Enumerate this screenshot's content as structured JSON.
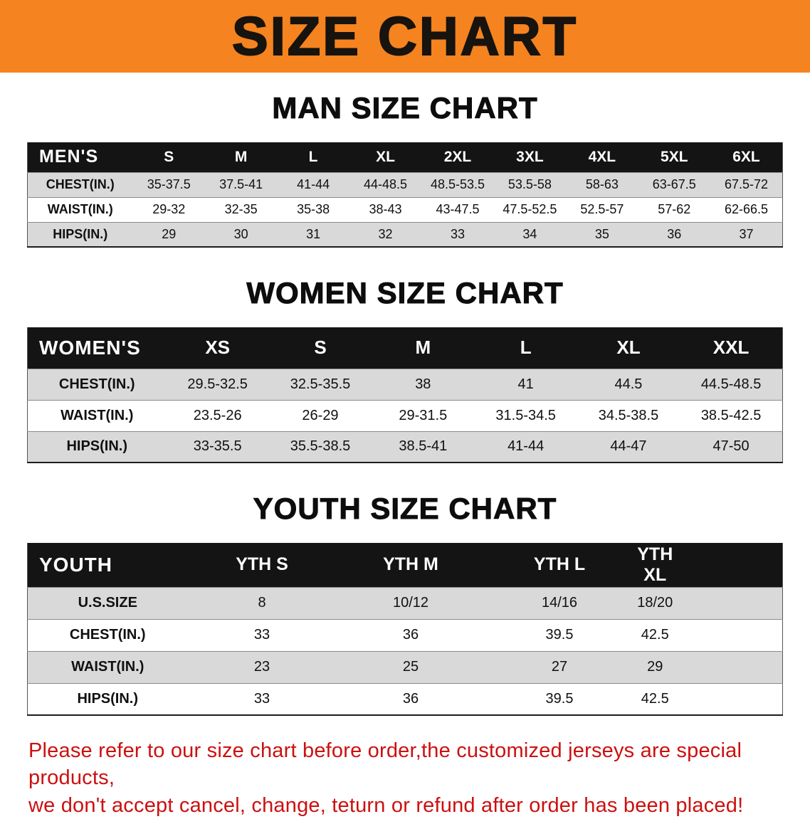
{
  "colors": {
    "banner_orange": "#f5831f",
    "header_black": "#141414",
    "stripe_gray": "#d9d9d9",
    "warning_red": "#cc1010"
  },
  "banner": {
    "title": "SIZE CHART"
  },
  "men": {
    "heading": "MAN SIZE CHART",
    "header": [
      "MEN'S",
      "S",
      "M",
      "L",
      "XL",
      "2XL",
      "3XL",
      "4XL",
      "5XL",
      "6XL"
    ],
    "rows": [
      [
        "CHEST(IN.)",
        "35-37.5",
        "37.5-41",
        "41-44",
        "44-48.5",
        "48.5-53.5",
        "53.5-58",
        "58-63",
        "63-67.5",
        "67.5-72"
      ],
      [
        "WAIST(IN.)",
        "29-32",
        "32-35",
        "35-38",
        "38-43",
        "43-47.5",
        "47.5-52.5",
        "52.5-57",
        "57-62",
        "62-66.5"
      ],
      [
        "HIPS(IN.)",
        "29",
        "30",
        "31",
        "32",
        "33",
        "34",
        "35",
        "36",
        "37"
      ]
    ]
  },
  "women": {
    "heading": "WOMEN SIZE CHART",
    "header": [
      "WOMEN'S",
      "XS",
      "S",
      "M",
      "L",
      "XL",
      "XXL"
    ],
    "rows": [
      [
        "CHEST(IN.)",
        "29.5-32.5",
        "32.5-35.5",
        "38",
        "41",
        "44.5",
        "44.5-48.5"
      ],
      [
        "WAIST(IN.)",
        "23.5-26",
        "26-29",
        "29-31.5",
        "31.5-34.5",
        "34.5-38.5",
        "38.5-42.5"
      ],
      [
        "HIPS(IN.)",
        "33-35.5",
        "35.5-38.5",
        "38.5-41",
        "41-44",
        "44-47",
        "47-50"
      ]
    ]
  },
  "youth": {
    "heading": "YOUTH SIZE CHART",
    "header": [
      "YOUTH",
      "YTH S",
      "YTH M",
      "YTH L",
      "YTH XL"
    ],
    "rows": [
      [
        "U.S.SIZE",
        "8",
        "10/12",
        "14/16",
        "18/20"
      ],
      [
        "CHEST(IN.)",
        "33",
        "36",
        "39.5",
        "42.5"
      ],
      [
        "WAIST(IN.)",
        "23",
        "25",
        "27",
        "29"
      ],
      [
        "HIPS(IN.)",
        "33",
        "36",
        "39.5",
        "42.5"
      ]
    ]
  },
  "disclaimer": {
    "line1": "Please refer to our size chart before order,the customized jerseys are special products,",
    "line2": "we don't accept cancel, change, teturn or refund after order has been placed!"
  }
}
